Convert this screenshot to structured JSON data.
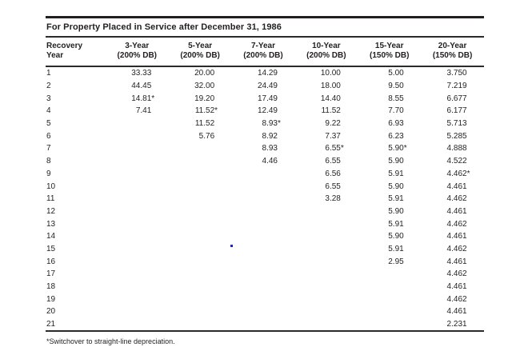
{
  "page": {
    "title": "For Property Placed in Service after December 31, 1986",
    "footnote": "*Switchover to straight-line depreciation."
  },
  "colors": {
    "text": "#231f20",
    "rule": "#2b2b2b",
    "artifact_dot": "#2222cc"
  },
  "table": {
    "col_headers": [
      {
        "line1": "Recovery",
        "line2": "Year"
      },
      {
        "line1": "3-Year",
        "line2": "(200% DB)"
      },
      {
        "line1": "5-Year",
        "line2": "(200% DB)"
      },
      {
        "line1": "7-Year",
        "line2": "(200% DB)"
      },
      {
        "line1": "10-Year",
        "line2": "(200% DB)"
      },
      {
        "line1": "15-Year",
        "line2": "(150% DB)"
      },
      {
        "line1": "20-Year",
        "line2": "(150% DB)"
      }
    ],
    "rows": [
      {
        "year": "1",
        "values": [
          "33.33",
          "20.00",
          "14.29",
          "10.00",
          "5.00",
          "3.750"
        ]
      },
      {
        "year": "2",
        "values": [
          "44.45",
          "32.00",
          "24.49",
          "18.00",
          "9.50",
          "7.219"
        ]
      },
      {
        "year": "3",
        "values": [
          "14.81*",
          "19.20",
          "17.49",
          "14.40",
          "8.55",
          "6.677"
        ]
      },
      {
        "year": "4",
        "values": [
          "7.41",
          "11.52*",
          "12.49",
          "11.52",
          "7.70",
          "6.177"
        ]
      },
      {
        "year": "5",
        "values": [
          "",
          "11.52",
          "8.93*",
          "9.22",
          "6.93",
          "5.713"
        ]
      },
      {
        "year": "6",
        "values": [
          "",
          "5.76",
          "8.92",
          "7.37",
          "6.23",
          "5.285"
        ]
      },
      {
        "year": "7",
        "values": [
          "",
          "",
          "8.93",
          "6.55*",
          "5.90*",
          "4.888"
        ]
      },
      {
        "year": "8",
        "values": [
          "",
          "",
          "4.46",
          "6.55",
          "5.90",
          "4.522"
        ]
      },
      {
        "year": "9",
        "values": [
          "",
          "",
          "",
          "6.56",
          "5.91",
          "4.462*"
        ]
      },
      {
        "year": "10",
        "values": [
          "",
          "",
          "",
          "6.55",
          "5.90",
          "4.461"
        ]
      },
      {
        "year": "11",
        "values": [
          "",
          "",
          "",
          "3.28",
          "5.91",
          "4.462"
        ]
      },
      {
        "year": "12",
        "values": [
          "",
          "",
          "",
          "",
          "5.90",
          "4.461"
        ]
      },
      {
        "year": "13",
        "values": [
          "",
          "",
          "",
          "",
          "5.91",
          "4.462"
        ]
      },
      {
        "year": "14",
        "values": [
          "",
          "",
          "",
          "",
          "5.90",
          "4.461"
        ]
      },
      {
        "year": "15",
        "values": [
          "",
          "",
          "",
          "",
          "5.91",
          "4.462"
        ]
      },
      {
        "year": "16",
        "values": [
          "",
          "",
          "",
          "",
          "2.95",
          "4.461"
        ]
      },
      {
        "year": "17",
        "values": [
          "",
          "",
          "",
          "",
          "",
          "4.462"
        ]
      },
      {
        "year": "18",
        "values": [
          "",
          "",
          "",
          "",
          "",
          "4.461"
        ]
      },
      {
        "year": "19",
        "values": [
          "",
          "",
          "",
          "",
          "",
          "4.462"
        ]
      },
      {
        "year": "20",
        "values": [
          "",
          "",
          "",
          "",
          "",
          "4.461"
        ]
      },
      {
        "year": "21",
        "values": [
          "",
          "",
          "",
          "",
          "",
          "2.231"
        ]
      }
    ]
  }
}
